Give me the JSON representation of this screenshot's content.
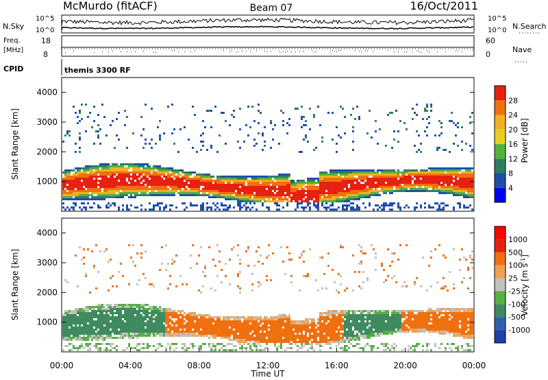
{
  "header": {
    "station": "McMurdo (fitACF)",
    "beam": "Beam 07",
    "date": "16/Oct/2011",
    "cpid_label": "CPID",
    "cpid_value": "themis 3300 RF"
  },
  "chart_data": [
    {
      "type": "line",
      "name": "noise-panel",
      "left_label": "N.Sky",
      "right_label": "N.Search",
      "left_ticks": [
        "10^5",
        "10^0"
      ],
      "right_ticks": [
        "10^5",
        "10^0"
      ]
    },
    {
      "type": "line",
      "name": "frequency-nave-panel",
      "left_label": "Freq.",
      "left_unit": "[MHz]",
      "right_label": "Nave",
      "left_ticks": [
        18,
        8
      ],
      "right_ticks": [
        60,
        0
      ]
    },
    {
      "type": "heatmap",
      "name": "power-panel",
      "ylabel": "Slant Range [km]",
      "y_ticks": [
        1000,
        2000,
        3000,
        4000
      ],
      "ylim": [
        0,
        4500
      ],
      "colorbar_label": "Power [dB]",
      "colorbar_ticks": [
        "28",
        "24",
        "20",
        "16",
        "12",
        "8",
        "4"
      ],
      "colors": [
        "#0000ff",
        "#1f4fa8",
        "#2f7f5f",
        "#55b040",
        "#e8d020",
        "#f0b020",
        "#f07010",
        "#e82010"
      ]
    },
    {
      "type": "heatmap",
      "name": "velocity-panel",
      "ylabel": "Slant Range [km]",
      "y_ticks": [
        1000,
        2000,
        3000,
        4000
      ],
      "ylim": [
        0,
        4500
      ],
      "colorbar_label": "Velocity [m s^-1]",
      "colorbar_ticks": [
        "1000",
        "500",
        "100",
        "25",
        "-25",
        "-100",
        "-500",
        "-1000"
      ],
      "colors": [
        "#1f3fa8",
        "#2f5fb0",
        "#3f8a5f",
        "#55b040",
        "#c0c0c0",
        "#f0a050",
        "#f07010",
        "#e82010",
        "#ff0000"
      ]
    }
  ],
  "x_axis": {
    "label": "Time UT",
    "ticks": [
      "00:00",
      "04:00",
      "08:00",
      "12:00",
      "16:00",
      "20:00",
      "00:00"
    ]
  }
}
